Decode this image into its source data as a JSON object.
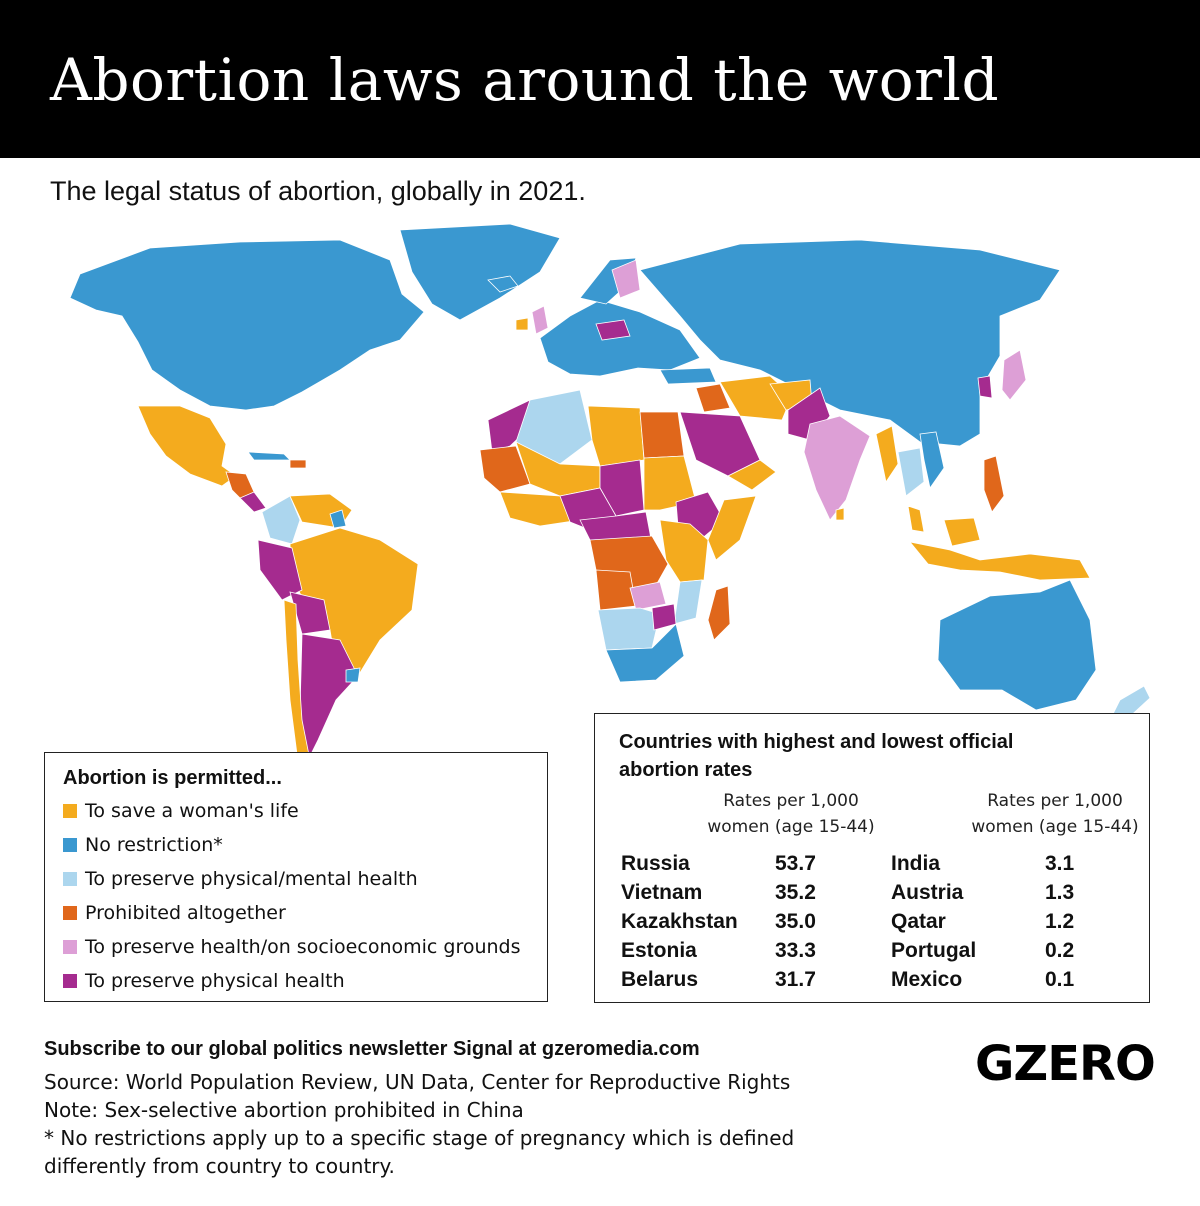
{
  "title": "Abortion laws around the world",
  "subtitle": "The legal status of abortion, globally in 2021.",
  "colors": {
    "save_life": "#f4ab1e",
    "no_restriction": "#3a98d0",
    "physical_mental": "#acd6ee",
    "prohibited": "#e0671b",
    "socioeconomic": "#dd9fd6",
    "physical_health": "#a52b8f"
  },
  "legend": {
    "title": "Abortion is permitted...",
    "items": [
      {
        "label": "To save a woman's life",
        "color": "#f4ab1e"
      },
      {
        "label": "No restriction*",
        "color": "#3a98d0"
      },
      {
        "label": "To preserve physical/mental health",
        "color": "#acd6ee"
      },
      {
        "label": "Prohibited altogether",
        "color": "#e0671b"
      },
      {
        "label": "To preserve health/on socioeconomic grounds",
        "color": "#dd9fd6"
      },
      {
        "label": "To preserve physical health",
        "color": "#a52b8f"
      }
    ]
  },
  "rates_table": {
    "title": "Countries with highest and lowest official abortion rates",
    "column_header_line1": "Rates per 1,000",
    "column_header_line2": "women (age 15-44)",
    "highest": [
      {
        "country": "Russia",
        "rate": "53.7"
      },
      {
        "country": "Vietnam",
        "rate": "35.2"
      },
      {
        "country": "Kazakhstan",
        "rate": "35.0"
      },
      {
        "country": "Estonia",
        "rate": "33.3"
      },
      {
        "country": "Belarus",
        "rate": "31.7"
      }
    ],
    "lowest": [
      {
        "country": "India",
        "rate": "3.1"
      },
      {
        "country": "Austria",
        "rate": "1.3"
      },
      {
        "country": "Qatar",
        "rate": "1.2"
      },
      {
        "country": "Portugal",
        "rate": "0.2"
      },
      {
        "country": "Mexico",
        "rate": "0.1"
      }
    ]
  },
  "footer": {
    "subscribe": "Subscribe to our global politics newsletter Signal at gzeromedia.com",
    "source": "Source: World Population Review, UN Data, Center for Reproductive Rights",
    "note": "Note: Sex-selective abortion prohibited in China",
    "footnote_line1": "* No restrictions apply up to a specific stage of pregnancy which is defined",
    "footnote_line2": "differently from country to country."
  },
  "logo": "GZERO"
}
